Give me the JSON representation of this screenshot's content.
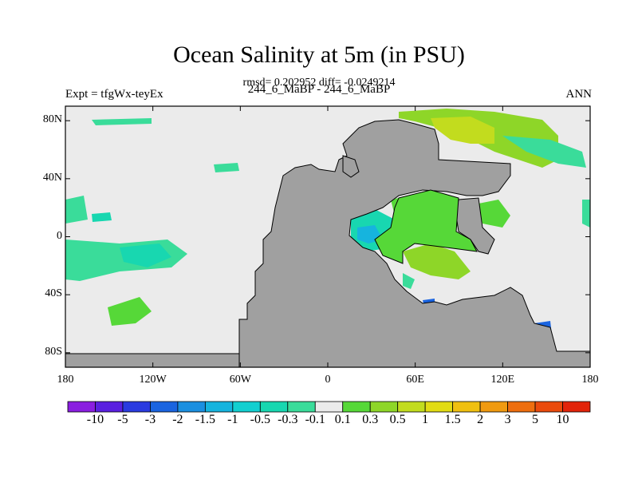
{
  "header": {
    "title": "Ocean Salinity at 5m (in PSU)",
    "stats": "rmsd= 0.202952 diff= -0.0249214",
    "expt": "Expt = tfgWx-teyEx",
    "cases": "244_6_MaBP - 244_6_MaBP",
    "season": "ANN"
  },
  "axes": {
    "lat_labels": [
      "80N",
      "40N",
      "0",
      "40S",
      "80S"
    ],
    "lat_values": [
      80,
      40,
      0,
      -40,
      -80
    ],
    "lon_labels": [
      "180",
      "120W",
      "60W",
      "0",
      "60E",
      "120E",
      "180"
    ],
    "lon_values": [
      -180,
      -120,
      -60,
      0,
      60,
      120,
      180
    ],
    "lat_range": [
      -90,
      90
    ],
    "lon_range": [
      -180,
      180
    ]
  },
  "colorbar": {
    "labels": [
      "-10",
      "-5",
      "-3",
      "-2",
      "-1.5",
      "-1",
      "-0.5",
      "-0.3",
      "-0.1",
      "0.1",
      "0.3",
      "0.5",
      "1",
      "1.5",
      "2",
      "3",
      "5",
      "10"
    ],
    "colors": [
      "#8a1ee0",
      "#5a20e0",
      "#2a3be0",
      "#1a64e0",
      "#1b8fe0",
      "#16b4de",
      "#12cfd0",
      "#18d7b0",
      "#3adc9a",
      "#ebebeb",
      "#56d838",
      "#8ed628",
      "#c2dc1e",
      "#e2dc14",
      "#f0c010",
      "#f09a10",
      "#ee6e0e",
      "#ea4a0c",
      "#e2240a"
    ]
  },
  "colors": {
    "land": "#a0a0a0",
    "ocean_background": "#ebebeb"
  }
}
